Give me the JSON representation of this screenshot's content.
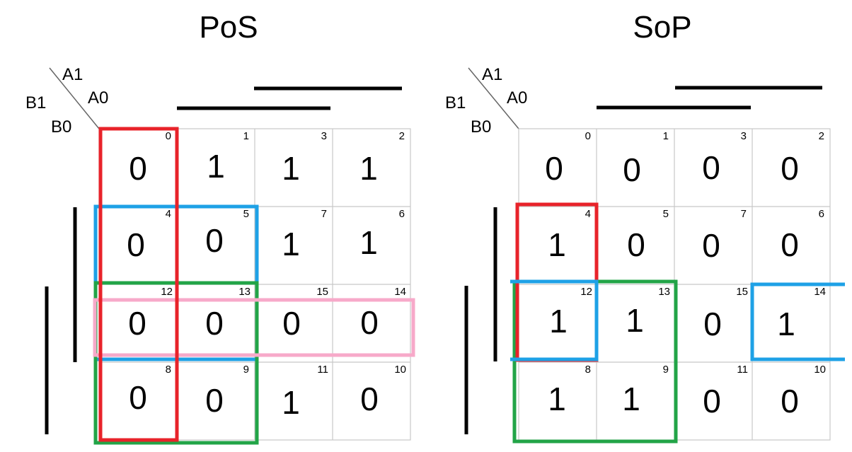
{
  "maps": [
    {
      "title": "PoS",
      "vars": {
        "a1": "A1",
        "a0": "A0",
        "b1": "B1",
        "b0": "B0"
      },
      "cells": [
        [
          {
            "index": "0",
            "value": "0"
          },
          {
            "index": "1",
            "value": "1"
          },
          {
            "index": "3",
            "value": "1"
          },
          {
            "index": "2",
            "value": "1"
          }
        ],
        [
          {
            "index": "4",
            "value": "0"
          },
          {
            "index": "5",
            "value": "0"
          },
          {
            "index": "7",
            "value": "1"
          },
          {
            "index": "6",
            "value": "1"
          }
        ],
        [
          {
            "index": "12",
            "value": "0"
          },
          {
            "index": "13",
            "value": "0"
          },
          {
            "index": "15",
            "value": "0"
          },
          {
            "index": "14",
            "value": "0"
          }
        ],
        [
          {
            "index": "8",
            "value": "0"
          },
          {
            "index": "9",
            "value": "0"
          },
          {
            "index": "11",
            "value": "1"
          },
          {
            "index": "10",
            "value": "0"
          }
        ]
      ],
      "groups": [
        {
          "name": "column-0-group",
          "color": "#e8232a"
        },
        {
          "name": "rows-4-5-12-13-group",
          "color": "#1ea1e6"
        },
        {
          "name": "rows-12-13-8-9-group",
          "color": "#22a447"
        },
        {
          "name": "row-12-15-group",
          "color": "#f7a9c9"
        }
      ]
    },
    {
      "title": "SoP",
      "vars": {
        "a1": "A1",
        "a0": "A0",
        "b1": "B1",
        "b0": "B0"
      },
      "cells": [
        [
          {
            "index": "0",
            "value": "0"
          },
          {
            "index": "1",
            "value": "0"
          },
          {
            "index": "3",
            "value": "0"
          },
          {
            "index": "2",
            "value": "0"
          }
        ],
        [
          {
            "index": "4",
            "value": "1"
          },
          {
            "index": "5",
            "value": "0"
          },
          {
            "index": "7",
            "value": "0"
          },
          {
            "index": "6",
            "value": "0"
          }
        ],
        [
          {
            "index": "12",
            "value": "1"
          },
          {
            "index": "13",
            "value": "1"
          },
          {
            "index": "15",
            "value": "0"
          },
          {
            "index": "14",
            "value": "1"
          }
        ],
        [
          {
            "index": "8",
            "value": "1"
          },
          {
            "index": "9",
            "value": "1"
          },
          {
            "index": "11",
            "value": "0"
          },
          {
            "index": "10",
            "value": "0"
          }
        ]
      ],
      "groups": [
        {
          "name": "cells-4-12-group",
          "color": "#e8232a"
        },
        {
          "name": "cells-12-14-wrap-group",
          "color": "#1ea1e6"
        },
        {
          "name": "cells-12-13-8-9-group",
          "color": "#22a447"
        }
      ]
    }
  ]
}
